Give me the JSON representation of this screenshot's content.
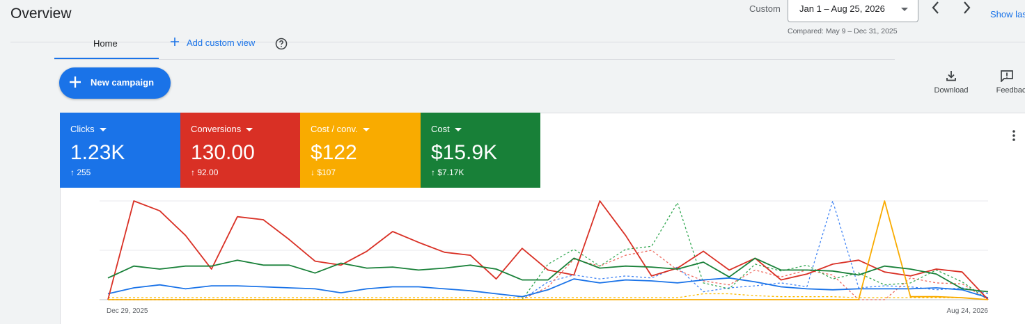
{
  "header": {
    "title": "Overview",
    "date_range_label": "Custom",
    "date_range_value": "Jan 1 – Aug 25, 2026",
    "compared_text": "Compared: May 9 – Dec 31, 2025",
    "show_last_label": "Show las"
  },
  "tabs": {
    "home_label": "Home",
    "add_custom_view_label": "Add custom view"
  },
  "actions": {
    "new_campaign_label": "New campaign",
    "download_label": "Download",
    "feedback_label": "Feedbac"
  },
  "metrics": [
    {
      "name": "Clicks",
      "value": "1.23K",
      "delta": "↑ 255",
      "color": "#1a73e8"
    },
    {
      "name": "Conversions",
      "value": "130.00",
      "delta": "↑ 92.00",
      "color": "#d93025"
    },
    {
      "name": "Cost / conv.",
      "value": "$122",
      "delta": "↓ $107",
      "color": "#f9ab00"
    },
    {
      "name": "Cost",
      "value": "$15.9K",
      "delta": "↑ $7.17K",
      "color": "#188038"
    }
  ],
  "chart_data": {
    "type": "line",
    "x_start_label": "Dec 29, 2025",
    "x_end_label": "Aug 24, 2026",
    "point_count": 35,
    "ylim": [
      0,
      100
    ],
    "series": [
      {
        "metric": "Clicks",
        "color": "#1a73e8",
        "dashed": false,
        "values": [
          6,
          12,
          15,
          11,
          14,
          14,
          13,
          12,
          11,
          7,
          11,
          13,
          13,
          11,
          9,
          6,
          3,
          10,
          21,
          17,
          20,
          19,
          17,
          20,
          22,
          18,
          13,
          11,
          10,
          11,
          11,
          11,
          12,
          10,
          2
        ]
      },
      {
        "metric": "Conversions",
        "color": "#d93025",
        "dashed": false,
        "values": [
          0,
          100,
          90,
          65,
          31,
          84,
          81,
          61,
          39,
          35,
          49,
          69,
          58,
          48,
          45,
          21,
          52,
          30,
          25,
          100,
          65,
          24,
          32,
          49,
          30,
          42,
          20,
          26,
          36,
          40,
          28,
          24,
          31,
          28,
          0
        ]
      },
      {
        "metric": "Cost / conv.",
        "color": "#f9ab00",
        "dashed": false,
        "values": [
          0,
          0,
          0,
          0,
          0,
          0,
          0,
          0,
          0,
          0,
          0,
          0,
          0,
          0,
          0,
          0,
          0,
          0,
          0,
          0,
          0,
          0,
          0,
          0,
          0,
          0,
          0,
          0,
          0,
          0,
          100,
          3,
          3,
          2,
          0
        ]
      },
      {
        "metric": "Cost",
        "color": "#188038",
        "dashed": false,
        "values": [
          22,
          34,
          31,
          34,
          34,
          40,
          35,
          35,
          27,
          37,
          32,
          33,
          30,
          32,
          35,
          31,
          20,
          20,
          42,
          32,
          34,
          33,
          31,
          38,
          23,
          42,
          30,
          30,
          29,
          25,
          34,
          31,
          26,
          11,
          8
        ]
      },
      {
        "metric": "Clicks (compared)",
        "color": "#4285f4",
        "dashed": true,
        "values": [
          0,
          0,
          0,
          0,
          0,
          0,
          0,
          0,
          0,
          0,
          0,
          0,
          0,
          0,
          0,
          0,
          0,
          18,
          25,
          21,
          24,
          22,
          33,
          8,
          12,
          14,
          17,
          13,
          100,
          12,
          14,
          13,
          10,
          12,
          6
        ]
      },
      {
        "metric": "Conversions (compared)",
        "color": "#ee675c",
        "dashed": true,
        "values": [
          0,
          0,
          0,
          0,
          0,
          0,
          0,
          0,
          0,
          0,
          0,
          0,
          0,
          0,
          0,
          0,
          0,
          13,
          41,
          34,
          45,
          50,
          30,
          19,
          15,
          30,
          23,
          30,
          25,
          0,
          0,
          22,
          17,
          16,
          0
        ]
      },
      {
        "metric": "Cost / conv. (compared)",
        "color": "#fbbc04",
        "dashed": true,
        "values": [
          2,
          2,
          2,
          2,
          2,
          2,
          2,
          2,
          2,
          2,
          2,
          2,
          2,
          2,
          2,
          2,
          2,
          2,
          2,
          2,
          2,
          2,
          2,
          6,
          6,
          4,
          3,
          3,
          3,
          2,
          2,
          2,
          2,
          2,
          0
        ]
      },
      {
        "metric": "Cost (compared)",
        "color": "#34a853",
        "dashed": true,
        "values": [
          0,
          0,
          0,
          0,
          0,
          0,
          0,
          0,
          0,
          0,
          0,
          0,
          0,
          0,
          0,
          0,
          0,
          36,
          51,
          34,
          51,
          54,
          98,
          17,
          11,
          36,
          29,
          35,
          21,
          27,
          15,
          17,
          30,
          18,
          0
        ]
      }
    ]
  }
}
